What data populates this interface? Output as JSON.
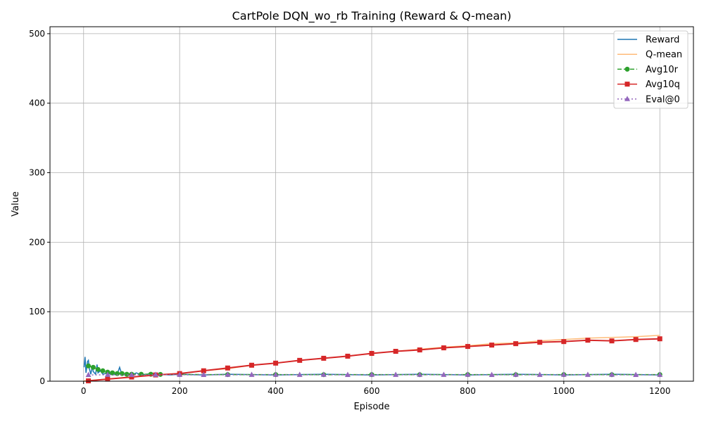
{
  "chart_data": {
    "type": "line",
    "title": "CartPole DQN_wo_rb Training (Reward & Q-mean)",
    "xlabel": "Episode",
    "ylabel": "Value",
    "xlim": [
      -70,
      1270
    ],
    "ylim": [
      0,
      510
    ],
    "xticks": [
      0,
      200,
      400,
      600,
      800,
      1000,
      1200
    ],
    "yticks": [
      0,
      100,
      200,
      300,
      400,
      500
    ],
    "grid": true,
    "legend": "top-right",
    "series": [
      {
        "name": "Reward",
        "color": "#1f77b4",
        "style": "solid",
        "marker": "none",
        "x": [
          1,
          3,
          5,
          8,
          10,
          12,
          15,
          18,
          20,
          25,
          28,
          30,
          35,
          40,
          50,
          60,
          70,
          75,
          80,
          90,
          100,
          110,
          120,
          130,
          140,
          150,
          160,
          180,
          200,
          250,
          300,
          400,
          500,
          600,
          700,
          800,
          900,
          1000,
          1100,
          1200
        ],
        "values": [
          20,
          35,
          12,
          28,
          30,
          18,
          10,
          22,
          14,
          10,
          24,
          12,
          15,
          10,
          12,
          9,
          10,
          20,
          9,
          10,
          9,
          12,
          9,
          10,
          11,
          9,
          10,
          9,
          10,
          9,
          10,
          9,
          10,
          9,
          10,
          9,
          10,
          9,
          10,
          9
        ]
      },
      {
        "name": "Q-mean",
        "color": "#ffbb78",
        "style": "solid",
        "marker": "none",
        "x": [
          0,
          50,
          100,
          150,
          200,
          250,
          300,
          350,
          400,
          450,
          500,
          550,
          600,
          650,
          700,
          750,
          800,
          850,
          900,
          950,
          1000,
          1050,
          1100,
          1150,
          1200
        ],
        "values": [
          0.5,
          3,
          6,
          9,
          11,
          15,
          18,
          23,
          26,
          30,
          33,
          36,
          40,
          43,
          46,
          49,
          51,
          54,
          55,
          58,
          60,
          62,
          63,
          64,
          66
        ]
      },
      {
        "name": "Avg10r",
        "color": "#2ca02c",
        "style": "dashed",
        "marker": "circle",
        "x": [
          10,
          20,
          30,
          40,
          50,
          60,
          70,
          80,
          90,
          100,
          120,
          140,
          160,
          200,
          300,
          400,
          500,
          600,
          700,
          800,
          900,
          1000,
          1100,
          1200
        ],
        "values": [
          22,
          20,
          17,
          15,
          13,
          12,
          11,
          11,
          10,
          10,
          10,
          10,
          9.8,
          9.6,
          9.5,
          9.5,
          9.4,
          9.5,
          9.4,
          9.5,
          9.4,
          9.5,
          9.4,
          9.5
        ]
      },
      {
        "name": "Avg10q",
        "color": "#d62728",
        "style": "solid",
        "marker": "square",
        "x": [
          10,
          50,
          100,
          150,
          200,
          250,
          300,
          350,
          400,
          450,
          500,
          550,
          600,
          650,
          700,
          750,
          800,
          850,
          900,
          950,
          1000,
          1050,
          1100,
          1150,
          1200
        ],
        "values": [
          0.5,
          3,
          6,
          9,
          11,
          15,
          19,
          23,
          26,
          30,
          33,
          36,
          40,
          43,
          45,
          48,
          50,
          52,
          54,
          56,
          57,
          59,
          58,
          60,
          61
        ]
      },
      {
        "name": "Eval@0",
        "color": "#9467bd",
        "style": "dotted",
        "marker": "triangle",
        "x": [
          10,
          50,
          100,
          150,
          200,
          250,
          300,
          350,
          400,
          450,
          500,
          550,
          600,
          650,
          700,
          750,
          800,
          850,
          900,
          950,
          1000,
          1050,
          1100,
          1150,
          1200
        ],
        "values": [
          9,
          9.2,
          9.1,
          9.3,
          9.2,
          9.1,
          9.3,
          9.2,
          9.4,
          9.2,
          9.3,
          9.1,
          9.3,
          9.2,
          9.4,
          9.2,
          9.3,
          9.1,
          9.3,
          9.2,
          9.4,
          9.2,
          9.3,
          9.1,
          9.2
        ]
      }
    ]
  }
}
